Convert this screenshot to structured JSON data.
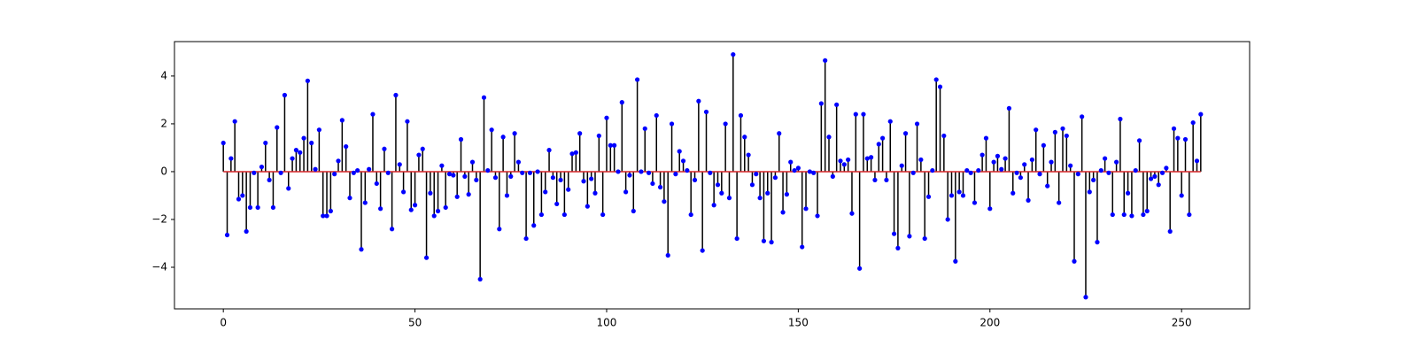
{
  "chart_data": {
    "type": "stem",
    "x": [
      0,
      1,
      2,
      3,
      4,
      5,
      6,
      7,
      8,
      9,
      10,
      11,
      12,
      13,
      14,
      15,
      16,
      17,
      18,
      19,
      20,
      21,
      22,
      23,
      24,
      25,
      26,
      27,
      28,
      29,
      30,
      31,
      32,
      33,
      34,
      35,
      36,
      37,
      38,
      39,
      40,
      41,
      42,
      43,
      44,
      45,
      46,
      47,
      48,
      49,
      50,
      51,
      52,
      53,
      54,
      55,
      56,
      57,
      58,
      59,
      60,
      61,
      62,
      63,
      64,
      65,
      66,
      67,
      68,
      69,
      70,
      71,
      72,
      73,
      74,
      75,
      76,
      77,
      78,
      79,
      80,
      81,
      82,
      83,
      84,
      85,
      86,
      87,
      88,
      89,
      90,
      91,
      92,
      93,
      94,
      95,
      96,
      97,
      98,
      99,
      100,
      101,
      102,
      103,
      104,
      105,
      106,
      107,
      108,
      109,
      110,
      111,
      112,
      113,
      114,
      115,
      116,
      117,
      118,
      119,
      120,
      121,
      122,
      123,
      124,
      125,
      126,
      127,
      128,
      129,
      130,
      131,
      132,
      133,
      134,
      135,
      136,
      137,
      138,
      139,
      140,
      141,
      142,
      143,
      144,
      145,
      146,
      147,
      148,
      149,
      150,
      151,
      152,
      153,
      154,
      155,
      156,
      157,
      158,
      159,
      160,
      161,
      162,
      163,
      164,
      165,
      166,
      167,
      168,
      169,
      170,
      171,
      172,
      173,
      174,
      175,
      176,
      177,
      178,
      179,
      180,
      181,
      182,
      183,
      184,
      185,
      186,
      187,
      188,
      189,
      190,
      191,
      192,
      193,
      194,
      195,
      196,
      197,
      198,
      199,
      200,
      201,
      202,
      203,
      204,
      205,
      206,
      207,
      208,
      209,
      210,
      211,
      212,
      213,
      214,
      215,
      216,
      217,
      218,
      219,
      220,
      221,
      222,
      223,
      224,
      225,
      226,
      227,
      228,
      229,
      230,
      231,
      232,
      233,
      234,
      235,
      236,
      237,
      238,
      239,
      240,
      241,
      242,
      243,
      244,
      245,
      246,
      247,
      248,
      249,
      250,
      251,
      252,
      253,
      254,
      255
    ],
    "values": [
      1.2,
      -2.65,
      0.55,
      2.1,
      -1.15,
      -1.0,
      -2.5,
      -1.5,
      -0.05,
      -1.5,
      0.2,
      1.2,
      -0.35,
      -1.5,
      1.85,
      -0.05,
      3.2,
      -0.7,
      0.55,
      0.9,
      0.8,
      1.4,
      3.8,
      1.2,
      0.1,
      1.75,
      -1.85,
      -1.85,
      -1.65,
      -0.1,
      0.45,
      2.15,
      1.05,
      -1.1,
      -0.05,
      0.05,
      -3.25,
      -1.3,
      0.1,
      2.4,
      -0.5,
      -1.55,
      0.95,
      -0.05,
      -2.4,
      3.2,
      0.3,
      -0.85,
      2.1,
      -1.6,
      -1.4,
      0.7,
      0.95,
      -3.6,
      -0.9,
      -1.85,
      -1.65,
      0.25,
      -1.5,
      -0.1,
      -0.15,
      -1.05,
      1.35,
      -0.2,
      -0.95,
      0.4,
      -0.35,
      -4.5,
      3.1,
      0.05,
      1.75,
      -0.25,
      -2.4,
      1.45,
      -1.0,
      -0.2,
      1.6,
      0.4,
      -0.05,
      -2.8,
      -0.05,
      -2.25,
      0.0,
      -1.8,
      -0.85,
      0.9,
      -0.25,
      -1.35,
      -0.35,
      -1.8,
      -0.75,
      0.75,
      0.8,
      1.6,
      -0.4,
      -1.45,
      -0.3,
      -0.9,
      1.5,
      -1.8,
      2.25,
      1.1,
      1.1,
      0.0,
      2.9,
      -0.85,
      -0.15,
      -1.65,
      3.85,
      0.0,
      1.8,
      -0.05,
      -0.5,
      2.35,
      -0.65,
      -1.25,
      -3.5,
      2.0,
      -0.1,
      0.85,
      0.45,
      0.05,
      -1.8,
      -0.35,
      2.95,
      -3.3,
      2.5,
      -0.05,
      -1.4,
      -0.55,
      -0.9,
      2.0,
      -1.1,
      4.9,
      -2.8,
      2.35,
      1.45,
      0.7,
      -0.55,
      -0.1,
      -1.1,
      -2.9,
      -0.9,
      -2.95,
      -0.25,
      1.6,
      -1.7,
      -0.95,
      0.4,
      0.05,
      0.15,
      -3.15,
      -1.55,
      0.0,
      -0.05,
      -1.85,
      2.85,
      4.65,
      1.45,
      -0.2,
      2.8,
      0.45,
      0.3,
      0.5,
      -1.75,
      2.4,
      -4.05,
      2.4,
      0.55,
      0.6,
      -0.35,
      1.15,
      1.4,
      -0.35,
      2.1,
      -2.6,
      -3.2,
      0.25,
      1.6,
      -2.7,
      -0.05,
      2.0,
      0.5,
      -2.8,
      -1.05,
      0.05,
      3.85,
      3.55,
      1.5,
      -2.0,
      -1.0,
      -3.75,
      -0.85,
      -1.0,
      0.05,
      -0.05,
      -1.3,
      0.05,
      0.7,
      1.4,
      -1.55,
      0.4,
      0.65,
      0.1,
      0.55,
      2.65,
      -0.9,
      -0.05,
      -0.25,
      0.3,
      -1.2,
      0.5,
      1.75,
      -0.1,
      1.1,
      -0.6,
      0.4,
      1.65,
      -1.3,
      1.8,
      1.5,
      0.25,
      -3.75,
      -0.1,
      2.3,
      -5.25,
      -0.85,
      -0.35,
      -2.95,
      0.05,
      0.55,
      -0.05,
      -1.8,
      0.4,
      2.2,
      -1.8,
      -0.9,
      -1.85,
      0.05,
      1.3,
      -1.8,
      -1.65,
      -0.3,
      -0.2,
      -0.55,
      -0.05,
      0.15,
      -2.5,
      1.8,
      1.4,
      -1.0,
      1.35,
      -1.8,
      2.05,
      0.45,
      2.4
    ],
    "line_color": "#000000",
    "marker_color": "#0000ff",
    "baseline_color": "#d62728",
    "xlim": [
      -12.75,
      267.75
    ],
    "ylim": [
      -5.74,
      5.44
    ],
    "xticks": [
      0,
      50,
      100,
      150,
      200,
      250
    ],
    "yticks": [
      {
        "value": -4,
        "label": "−4"
      },
      {
        "value": -2,
        "label": "−2"
      },
      0,
      2,
      4
    ]
  }
}
